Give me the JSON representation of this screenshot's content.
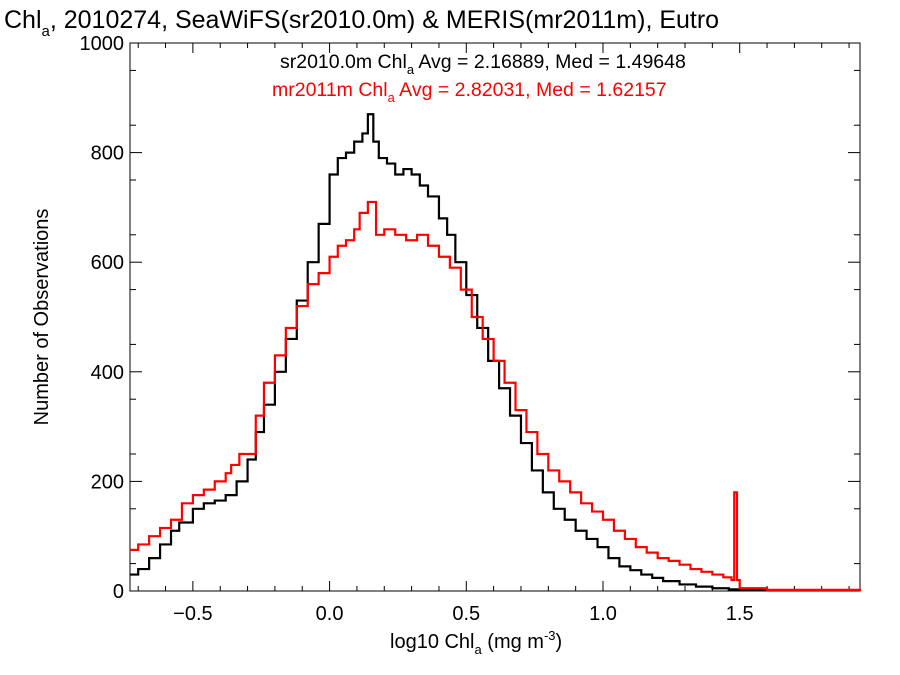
{
  "title": {
    "prefix": "Chl",
    "subscript": "a",
    "rest": ", 2010274, SeaWiFS(sr2010.0m) & MERIS(mr2011m), Eutro"
  },
  "legend": [
    {
      "name_prefix": "sr2010.0m Chl",
      "subscript": "a",
      "stats": " Avg = 2.16889, Med = 1.49648",
      "color": "#000000"
    },
    {
      "name_prefix": "mr2011m Chl",
      "subscript": "a",
      "stats": " Avg = 2.82031, Med = 1.62157",
      "color": "#ff0000"
    }
  ],
  "axes": {
    "xlabel": {
      "prefix": "log10 Chl",
      "subscript": "a",
      "unit_prefix": " (mg m",
      "superscript": "-3",
      "unit_suffix": ")"
    },
    "ylabel": "Number of Observations"
  },
  "chart_data": {
    "type": "line",
    "style": "step",
    "xlim": [
      -0.73,
      1.94
    ],
    "ylim": [
      0,
      1000
    ],
    "x_ticks": [
      {
        "value": -0.5,
        "label": "−0.5"
      },
      {
        "value": 0.0,
        "label": "0.0"
      },
      {
        "value": 0.5,
        "label": "0.5"
      },
      {
        "value": 1.0,
        "label": "1.0"
      },
      {
        "value": 1.5,
        "label": "1.5"
      }
    ],
    "y_ticks": [
      {
        "value": 0,
        "label": "0"
      },
      {
        "value": 200,
        "label": "200"
      },
      {
        "value": 400,
        "label": "400"
      },
      {
        "value": 600,
        "label": "600"
      },
      {
        "value": 800,
        "label": "800"
      },
      {
        "value": 1000,
        "label": "1000"
      }
    ],
    "series": [
      {
        "name": "sr2010.0m",
        "color": "#000000",
        "points": [
          [
            -0.73,
            30
          ],
          [
            -0.7,
            40
          ],
          [
            -0.66,
            60
          ],
          [
            -0.62,
            85
          ],
          [
            -0.58,
            110
          ],
          [
            -0.55,
            125
          ],
          [
            -0.5,
            150
          ],
          [
            -0.46,
            160
          ],
          [
            -0.42,
            165
          ],
          [
            -0.38,
            175
          ],
          [
            -0.34,
            200
          ],
          [
            -0.3,
            240
          ],
          [
            -0.27,
            290
          ],
          [
            -0.24,
            340
          ],
          [
            -0.2,
            400
          ],
          [
            -0.16,
            460
          ],
          [
            -0.12,
            530
          ],
          [
            -0.08,
            600
          ],
          [
            -0.04,
            670
          ],
          [
            0.0,
            760
          ],
          [
            0.03,
            790
          ],
          [
            0.06,
            800
          ],
          [
            0.09,
            820
          ],
          [
            0.12,
            835
          ],
          [
            0.14,
            870
          ],
          [
            0.16,
            820
          ],
          [
            0.18,
            790
          ],
          [
            0.21,
            780
          ],
          [
            0.24,
            760
          ],
          [
            0.27,
            770
          ],
          [
            0.3,
            760
          ],
          [
            0.33,
            740
          ],
          [
            0.36,
            720
          ],
          [
            0.4,
            680
          ],
          [
            0.43,
            650
          ],
          [
            0.46,
            600
          ],
          [
            0.5,
            540
          ],
          [
            0.54,
            480
          ],
          [
            0.58,
            420
          ],
          [
            0.62,
            370
          ],
          [
            0.66,
            320
          ],
          [
            0.7,
            270
          ],
          [
            0.74,
            220
          ],
          [
            0.78,
            180
          ],
          [
            0.82,
            150
          ],
          [
            0.86,
            130
          ],
          [
            0.9,
            110
          ],
          [
            0.94,
            95
          ],
          [
            0.98,
            80
          ],
          [
            1.02,
            60
          ],
          [
            1.06,
            45
          ],
          [
            1.1,
            38
          ],
          [
            1.14,
            30
          ],
          [
            1.18,
            24
          ],
          [
            1.22,
            18
          ],
          [
            1.28,
            12
          ],
          [
            1.34,
            8
          ],
          [
            1.4,
            5
          ],
          [
            1.46,
            3
          ],
          [
            1.5,
            2
          ],
          [
            1.6,
            1
          ],
          [
            1.94,
            0
          ]
        ]
      },
      {
        "name": "mr2011m",
        "color": "#ff0000",
        "points": [
          [
            -0.73,
            75
          ],
          [
            -0.7,
            85
          ],
          [
            -0.66,
            100
          ],
          [
            -0.62,
            115
          ],
          [
            -0.58,
            130
          ],
          [
            -0.54,
            160
          ],
          [
            -0.5,
            175
          ],
          [
            -0.46,
            185
          ],
          [
            -0.42,
            200
          ],
          [
            -0.38,
            215
          ],
          [
            -0.36,
            230
          ],
          [
            -0.33,
            250
          ],
          [
            -0.3,
            250
          ],
          [
            -0.27,
            320
          ],
          [
            -0.24,
            380
          ],
          [
            -0.2,
            430
          ],
          [
            -0.16,
            480
          ],
          [
            -0.12,
            520
          ],
          [
            -0.08,
            560
          ],
          [
            -0.04,
            580
          ],
          [
            0.0,
            610
          ],
          [
            0.03,
            630
          ],
          [
            0.06,
            640
          ],
          [
            0.09,
            660
          ],
          [
            0.11,
            690
          ],
          [
            0.14,
            710
          ],
          [
            0.17,
            650
          ],
          [
            0.2,
            660
          ],
          [
            0.24,
            650
          ],
          [
            0.28,
            640
          ],
          [
            0.32,
            650
          ],
          [
            0.36,
            630
          ],
          [
            0.4,
            610
          ],
          [
            0.44,
            590
          ],
          [
            0.48,
            550
          ],
          [
            0.52,
            500
          ],
          [
            0.56,
            460
          ],
          [
            0.6,
            420
          ],
          [
            0.64,
            380
          ],
          [
            0.68,
            330
          ],
          [
            0.72,
            290
          ],
          [
            0.76,
            250
          ],
          [
            0.8,
            220
          ],
          [
            0.84,
            200
          ],
          [
            0.88,
            180
          ],
          [
            0.92,
            160
          ],
          [
            0.96,
            145
          ],
          [
            1.0,
            130
          ],
          [
            1.04,
            110
          ],
          [
            1.08,
            95
          ],
          [
            1.12,
            80
          ],
          [
            1.16,
            70
          ],
          [
            1.2,
            60
          ],
          [
            1.24,
            55
          ],
          [
            1.28,
            48
          ],
          [
            1.32,
            40
          ],
          [
            1.36,
            35
          ],
          [
            1.4,
            30
          ],
          [
            1.44,
            25
          ],
          [
            1.47,
            20
          ],
          [
            1.48,
            180
          ],
          [
            1.49,
            20
          ],
          [
            1.5,
            5
          ],
          [
            1.6,
            2
          ],
          [
            1.94,
            0
          ]
        ]
      }
    ]
  }
}
